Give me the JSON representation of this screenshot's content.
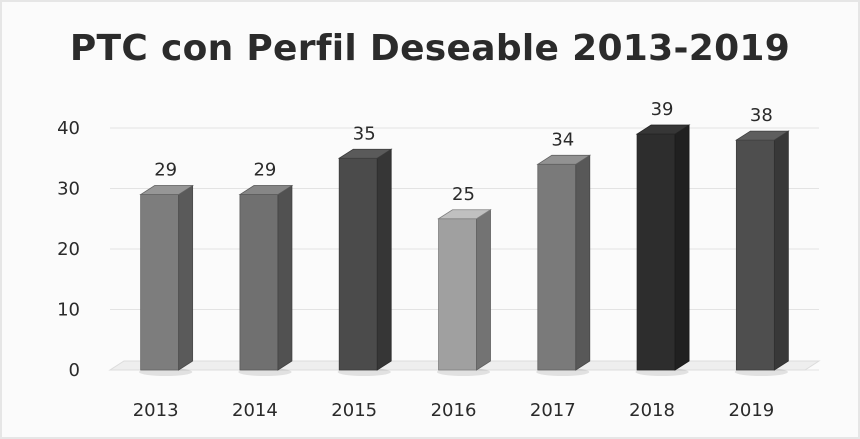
{
  "chart_data": {
    "type": "bar",
    "title": "PTC con Perfil Deseable 2013-2019",
    "categories": [
      "2013",
      "2014",
      "2015",
      "2016",
      "2017",
      "2018",
      "2019"
    ],
    "values": [
      29,
      29,
      35,
      25,
      34,
      39,
      38
    ],
    "xlabel": "",
    "ylabel": "",
    "ylim": [
      0,
      40
    ],
    "yticks": [
      0,
      10,
      20,
      30,
      40
    ],
    "grid": true,
    "legend": "none",
    "bar_colors": [
      "#7d7d7d",
      "#707070",
      "#4b4b4b",
      "#a0a0a0",
      "#7a7a7a",
      "#2d2d2d",
      "#4e4e4e"
    ]
  }
}
